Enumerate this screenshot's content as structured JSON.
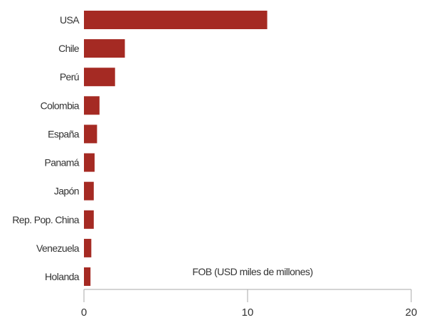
{
  "chart_data": {
    "type": "bar",
    "orientation": "horizontal",
    "categories": [
      "USA",
      "Chile",
      "Perú",
      "Colombia",
      "España",
      "Panamá",
      "Japón",
      "Rep. Pop. China",
      "Venezuela",
      "Holanda"
    ],
    "values": [
      11.2,
      2.5,
      1.9,
      0.95,
      0.8,
      0.65,
      0.6,
      0.6,
      0.45,
      0.4
    ],
    "xlim": [
      0,
      20
    ],
    "x_ticks": [
      0,
      10,
      20
    ],
    "xlabel": "FOB (USD miles de millones)",
    "title": "",
    "grid": false,
    "bar_color": "#a52a23",
    "axis_color": "#aaaaaa"
  }
}
